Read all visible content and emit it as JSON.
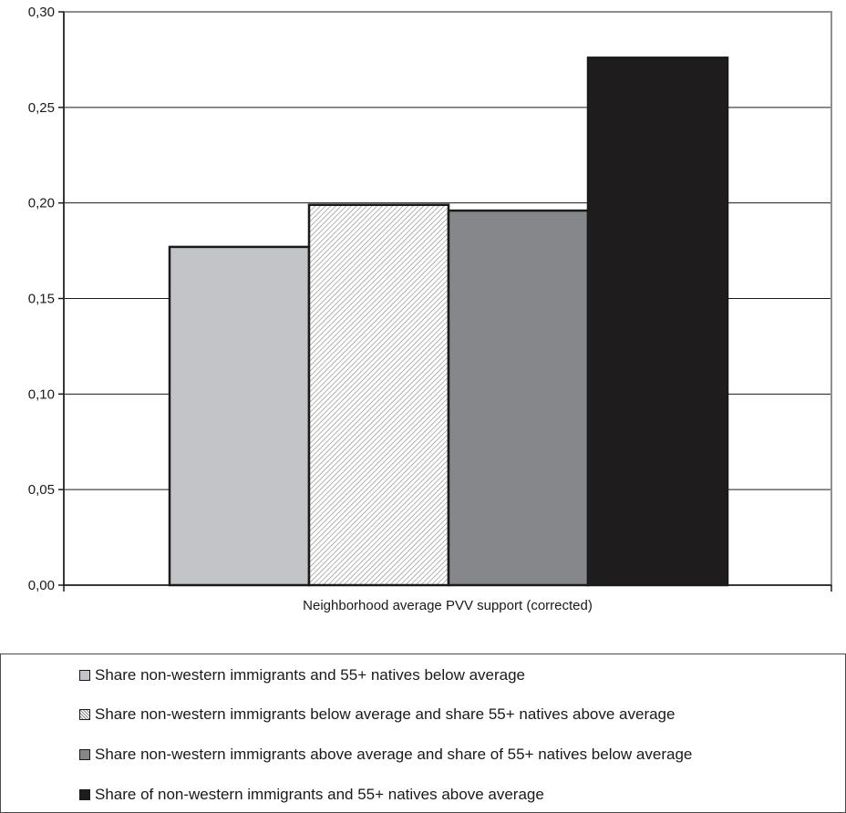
{
  "chart_data": {
    "type": "bar",
    "categories": [
      "Neighborhood average PVV support (corrected)"
    ],
    "ylim": [
      0,
      0.3
    ],
    "yticks": [
      "0,00",
      "0,05",
      "0,10",
      "0,15",
      "0,20",
      "0,25",
      "0,30"
    ],
    "ytick_values": [
      0,
      0.05,
      0.1,
      0.15,
      0.2,
      0.25,
      0.3
    ],
    "grid": true,
    "legend_position": "bottom",
    "series": [
      {
        "name": "Share non-western immigrants and 55+ natives below average",
        "values": [
          0.177
        ],
        "color": "#c3c4c8",
        "pattern": "solid"
      },
      {
        "name": "Share non-western immigrants below average and share 55+ natives above average",
        "values": [
          0.199
        ],
        "color": "#ffffff",
        "pattern": "hatch"
      },
      {
        "name": "Share non-western immigrants above average and share of 55+ natives below average",
        "values": [
          0.196
        ],
        "color": "#86878b",
        "pattern": "solid"
      },
      {
        "name": "Share of non-western immigrants and 55+ natives above average",
        "values": [
          0.276
        ],
        "color": "#1f1c1d",
        "pattern": "solid"
      }
    ]
  }
}
